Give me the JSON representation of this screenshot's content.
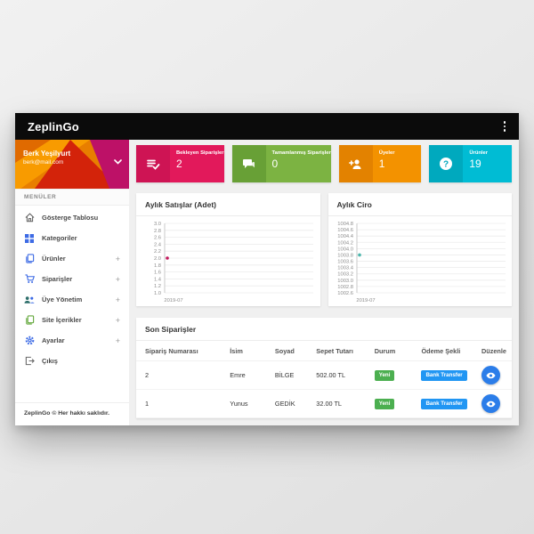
{
  "header": {
    "title": "ZeplinGo",
    "menu_icon": "kebab-menu"
  },
  "user": {
    "name": "Berk Yeşilyurt",
    "email": "berk@mail.com"
  },
  "sidebar": {
    "section_title": "MENÜLER",
    "items": [
      {
        "label": "Gösterge Tablosu",
        "icon": "home-icon",
        "expandable": ""
      },
      {
        "label": "Kategoriler",
        "icon": "grid-icon",
        "expandable": ""
      },
      {
        "label": "Ürünler",
        "icon": "pages-icon",
        "expandable": "+"
      },
      {
        "label": "Siparişler",
        "icon": "cart-icon",
        "expandable": "+"
      },
      {
        "label": "Üye Yönetim",
        "icon": "people-icon",
        "expandable": "+"
      },
      {
        "label": "Site İçerikler",
        "icon": "content-icon",
        "expandable": "+"
      },
      {
        "label": "Ayarlar",
        "icon": "gear-icon",
        "expandable": "+"
      },
      {
        "label": "Çıkış",
        "icon": "logout-icon",
        "expandable": ""
      }
    ],
    "footer": "ZeplinGo © Her hakkı saklıdır."
  },
  "stat_cards": [
    {
      "label": "Bekleyen Siparişler",
      "value": "2",
      "icon": "checklist-icon",
      "color": "#E2195B",
      "color_dark": "#CE1454"
    },
    {
      "label": "Tamamlanmış Siparişler",
      "value": "0",
      "icon": "chat-icon",
      "color": "#7CB342",
      "color_dark": "#68A036"
    },
    {
      "label": "Üyeler",
      "value": "1",
      "icon": "add-user-icon",
      "color": "#F39200",
      "color_dark": "#E38200"
    },
    {
      "label": "Ürünler",
      "value": "19",
      "icon": "question-icon",
      "color": "#00BCD4",
      "color_dark": "#00A9BE"
    }
  ],
  "chart_data": [
    {
      "type": "scatter",
      "title": "Aylık Satışlar (Adet)",
      "x": [
        "2019-07"
      ],
      "values": [
        2.0
      ],
      "ylim": [
        1.0,
        3.0
      ],
      "ytick_labels": [
        "3.0",
        "2.8",
        "2.6",
        "2.4",
        "2.2",
        "2.0",
        "1.8",
        "1.6",
        "1.4",
        "1.2",
        "1.0"
      ],
      "xlabel": "",
      "ylabel": "",
      "grid": "horizontal",
      "legend": "none",
      "point_color": "#C2185B"
    },
    {
      "type": "scatter",
      "title": "Aylık Ciro",
      "x": [
        "2019-07"
      ],
      "values": [
        1003.8
      ],
      "ylim": [
        1002.6,
        1004.8
      ],
      "ytick_labels": [
        "1004.8",
        "1004.6",
        "1004.4",
        "1004.2",
        "1004.0",
        "1003.8",
        "1003.6",
        "1003.4",
        "1003.2",
        "1003.0",
        "1002.8",
        "1002.6"
      ],
      "xlabel": "",
      "ylabel": "",
      "grid": "horizontal",
      "legend": "none",
      "point_color": "#4DB6AC"
    }
  ],
  "orders": {
    "title": "Son Siparişler",
    "columns": [
      "Sipariş Numarası",
      "İsim",
      "Soyad",
      "Sepet Tutarı",
      "Durum",
      "Ödeme Şekli",
      "Düzenle"
    ],
    "rows": [
      {
        "number": "2",
        "first_name": "Emre",
        "last_name": "BİLGE",
        "total": "502.00 TL",
        "status": "Yeni",
        "payment": "Bank Transfer"
      },
      {
        "number": "1",
        "first_name": "Yunus",
        "last_name": "GEDİK",
        "total": "32.00 TL",
        "status": "Yeni",
        "payment": "Bank Transfer"
      }
    ],
    "status_color": "#4CAF50",
    "payment_color": "#2196F3",
    "edit_button_color": "#2B7DE9"
  }
}
